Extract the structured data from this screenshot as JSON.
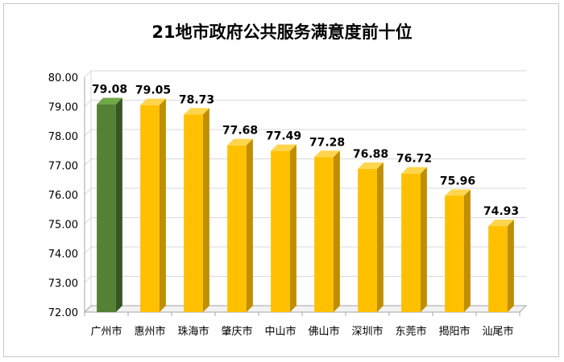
{
  "chart_data": {
    "type": "bar",
    "title": "21地市政府公共服务满意度前十位",
    "xlabel": "",
    "ylabel": "",
    "categories": [
      "广州市",
      "惠州市",
      "珠海市",
      "肇庆市",
      "中山市",
      "佛山市",
      "深圳市",
      "东莞市",
      "揭阳市",
      "汕尾市"
    ],
    "values": [
      79.08,
      79.05,
      78.73,
      77.68,
      77.49,
      77.28,
      76.88,
      76.72,
      75.96,
      74.93
    ],
    "data_labels": [
      "79.08",
      "79.05",
      "78.73",
      "77.68",
      "77.49",
      "77.28",
      "76.88",
      "76.72",
      "75.96",
      "74.93"
    ],
    "ylim": [
      72.0,
      80.0
    ],
    "yticks": [
      "72.00",
      "73.00",
      "74.00",
      "75.00",
      "76.00",
      "77.00",
      "78.00",
      "79.00",
      "80.00"
    ],
    "grid": true,
    "legend": "none",
    "style": "3d-column",
    "colors": {
      "highlight": "#538135",
      "highlight_side": "#375623",
      "highlight_top": "#70a846",
      "default": "#ffc000",
      "default_side": "#bf8f00",
      "default_top": "#ffd54d",
      "grid": "#d9d9d9",
      "wall": "#f2f2f2"
    },
    "highlight_index": 0
  }
}
